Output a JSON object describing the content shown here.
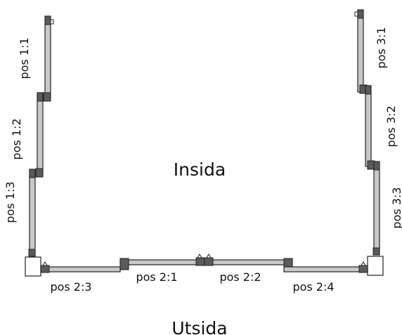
{
  "diagram": {
    "center_top_label": "Insida",
    "center_bottom_label": "Utsida",
    "positions": {
      "p1_1": "pos 1:1",
      "p1_2": "pos 1:2",
      "p1_3": "pos 1:3",
      "p2_1": "pos 2:1",
      "p2_2": "pos 2:2",
      "p2_3": "pos 2:3",
      "p2_4": "pos 2:4",
      "p3_1": "pos 3:1",
      "p3_2": "pos 3:2",
      "p3_3": "pos 3:3"
    }
  },
  "colors": {
    "panel_fill": "#c8c8c8",
    "frame_dark": "#5a5a5a",
    "outline": "#222222"
  }
}
